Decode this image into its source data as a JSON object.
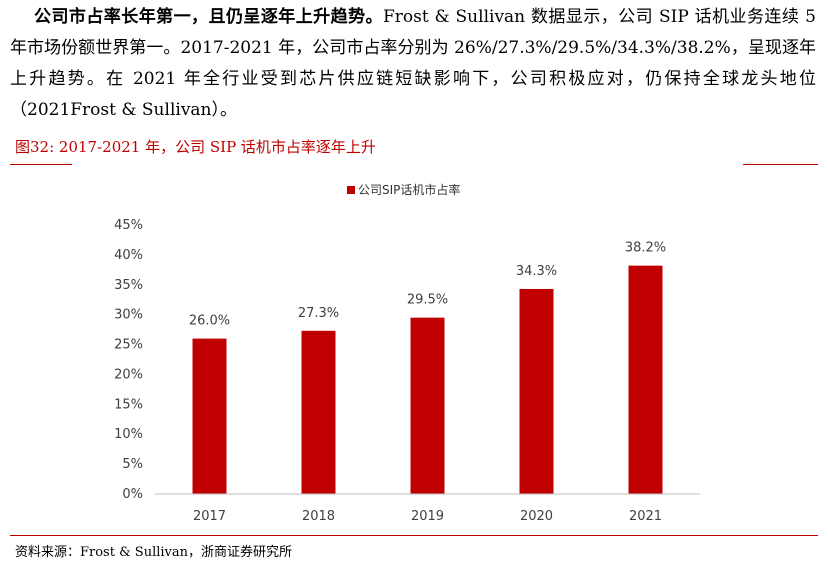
{
  "paragraph": {
    "lead": "公司市占率长年第一，且仍呈逐年上升趋势。",
    "body": "Frost & Sullivan 数据显示，公司 SIP 话机业务连续 5 年市场份额世界第一。2017-2021 年，公司市占率分别为 26%/27.3%/29.5%/34.3%/38.2%，呈现逐年上升趋势。在 2021 年全行业受到芯片供应链短缺影响下，公司积极应对，仍保持全球龙头地位（2021Frost & Sullivan）。"
  },
  "figure": {
    "title": "图32:  2017-2021 年，公司 SIP 话机市占率逐年上升",
    "source": "资料来源：Frost & Sullivan，浙商证券研究所",
    "accent_color": "#c00000"
  },
  "chart_data": {
    "type": "bar",
    "title": "",
    "categories": [
      "2017",
      "2018",
      "2019",
      "2020",
      "2021"
    ],
    "series": [
      {
        "name": "公司SIP话机市占率",
        "values": [
          26.0,
          27.3,
          29.5,
          34.3,
          38.2
        ],
        "color": "#c00000"
      }
    ],
    "data_labels": [
      "26.0%",
      "27.3%",
      "29.5%",
      "34.3%",
      "38.2%"
    ],
    "y_ticks": [
      "0%",
      "5%",
      "10%",
      "15%",
      "20%",
      "25%",
      "30%",
      "35%",
      "40%",
      "45%"
    ],
    "ylim": [
      0,
      45
    ],
    "y_unit": "%",
    "grid": false,
    "legend": "top-center"
  }
}
